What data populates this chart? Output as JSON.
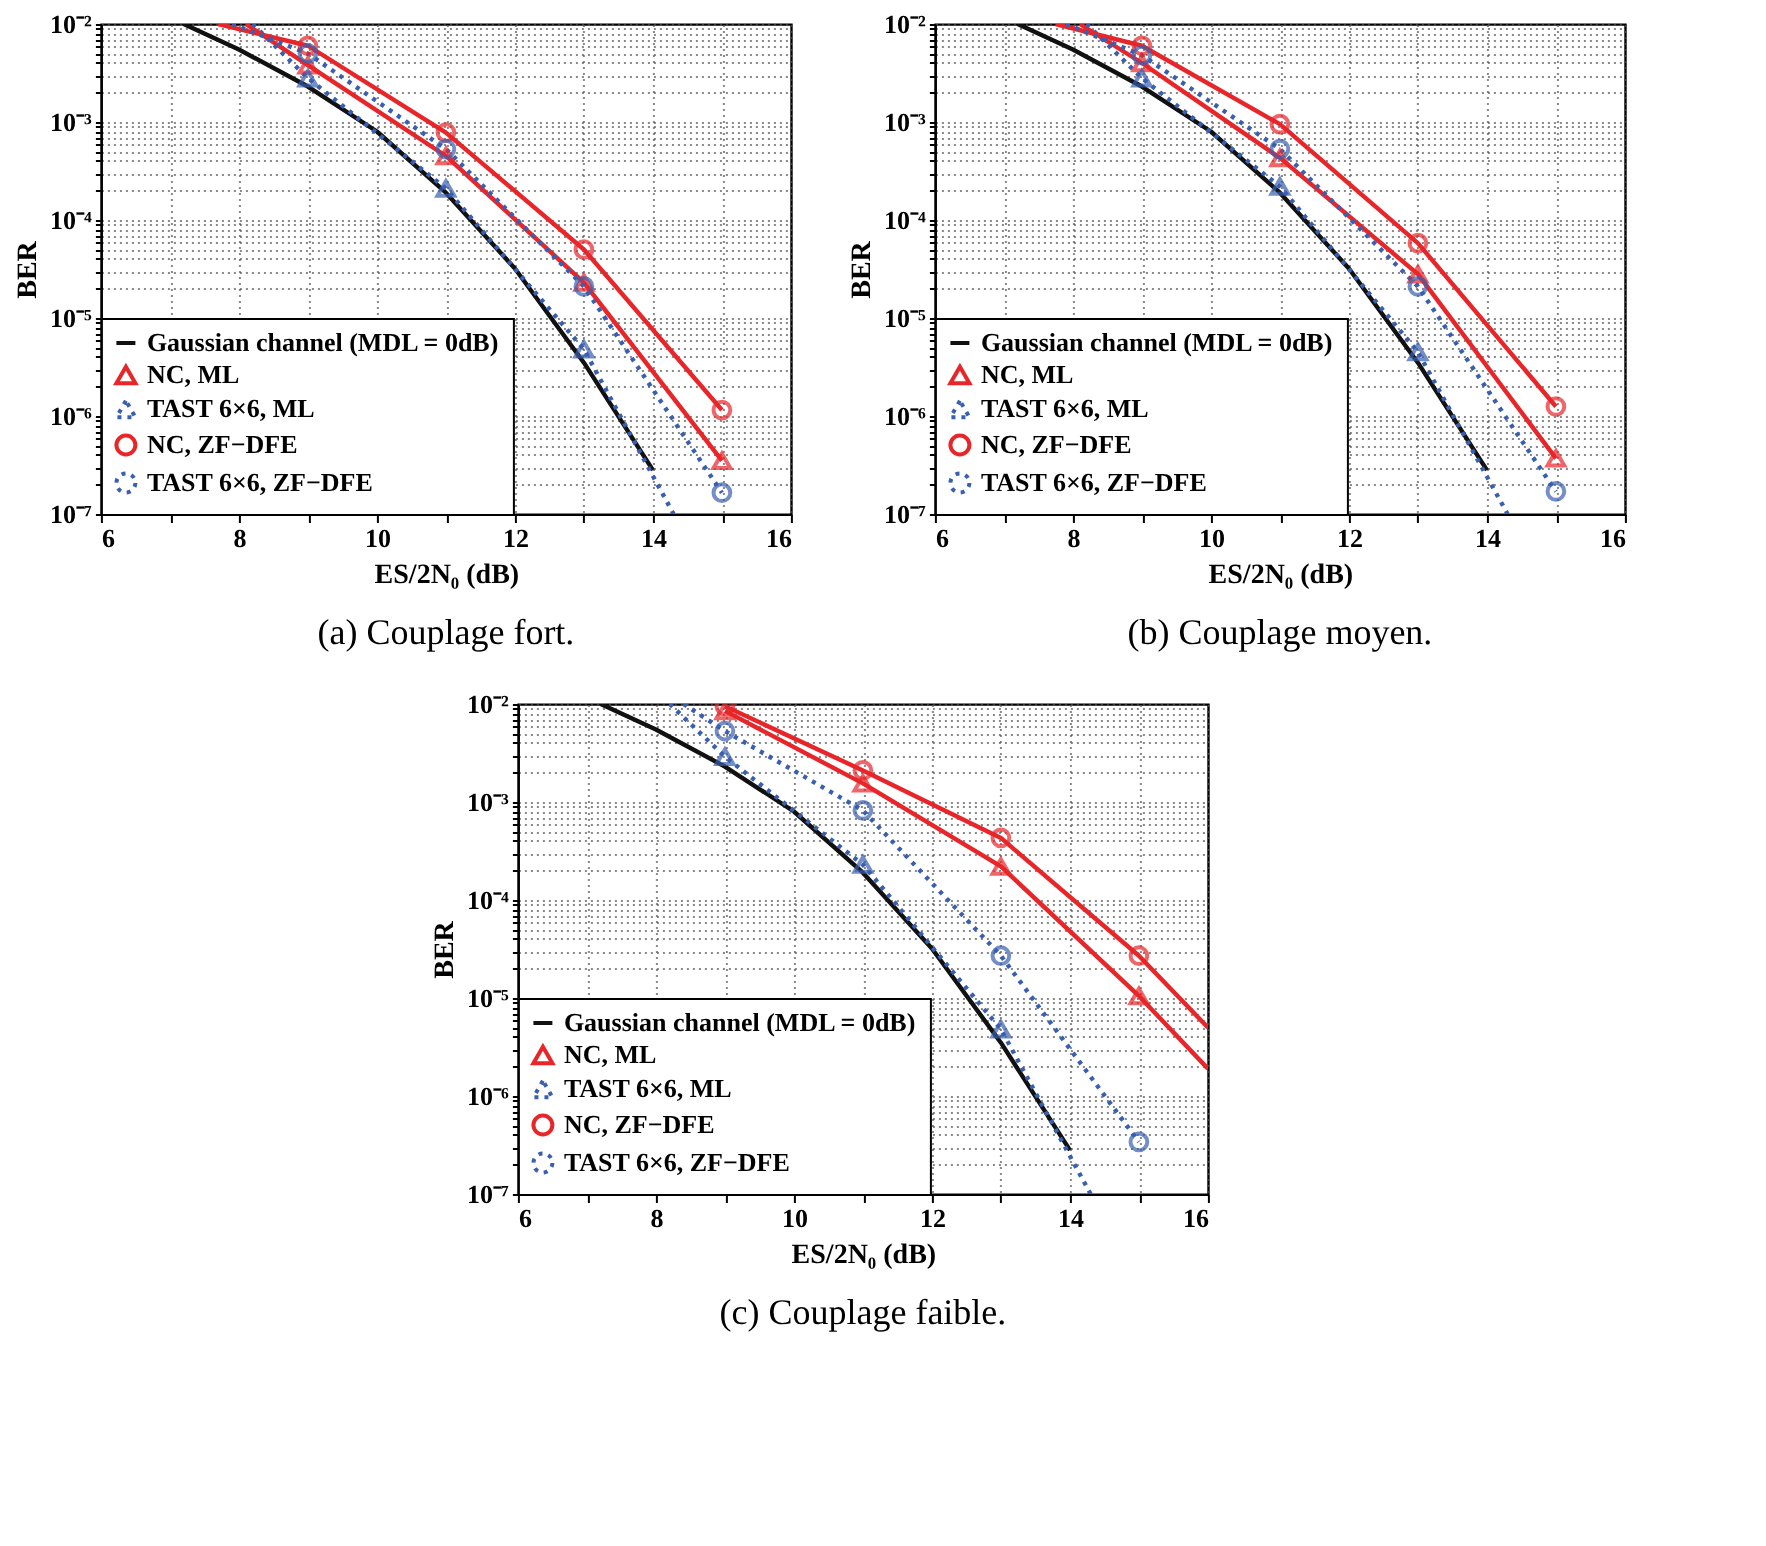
{
  "chart_data": [
    {
      "type": "line",
      "title": "(a) Couplage fort.",
      "xlabel": "ES/2N₀ (dB)",
      "ylabel": "BER",
      "log": "y",
      "grid": true,
      "legend": "bottom left",
      "xlim": [
        6,
        16
      ],
      "ylim": [
        1e-07,
        0.01
      ],
      "xticks": [
        6,
        {
          "value": 7,
          "label": null
        },
        8,
        {
          "value": 9,
          "label": null
        },
        10,
        {
          "value": 11,
          "label": null
        },
        12,
        {
          "value": 13,
          "label": null
        },
        14,
        {
          "value": 15,
          "label": null
        },
        16
      ],
      "yticks": [
        {
          "value": 1e-07,
          "label": "10⁻⁷"
        },
        {
          "value": 2e-07,
          "label": null
        },
        {
          "value": 3e-07,
          "label": null
        },
        {
          "value": 4e-07,
          "label": null
        },
        {
          "value": 5e-07,
          "label": null
        },
        {
          "value": 6e-07,
          "label": null
        },
        {
          "value": 7e-07,
          "label": null
        },
        {
          "value": 8e-07,
          "label": null
        },
        {
          "value": 9e-07,
          "label": null
        },
        {
          "value": 1e-06,
          "label": "10⁻⁶"
        },
        {
          "value": 2e-06,
          "label": null
        },
        {
          "value": 3e-06,
          "label": null
        },
        {
          "value": 4e-06,
          "label": null
        },
        {
          "value": 5e-06,
          "label": null
        },
        {
          "value": 6e-06,
          "label": null
        },
        {
          "value": 7e-06,
          "label": null
        },
        {
          "value": 8e-06,
          "label": null
        },
        {
          "value": 9e-06,
          "label": null
        },
        {
          "value": 1e-05,
          "label": "10⁻⁵"
        },
        {
          "value": 2e-05,
          "label": null
        },
        {
          "value": 3e-05,
          "label": null
        },
        {
          "value": 4e-05,
          "label": null
        },
        {
          "value": 5e-05,
          "label": null
        },
        {
          "value": 6e-05,
          "label": null
        },
        {
          "value": 7e-05,
          "label": null
        },
        {
          "value": 8e-05,
          "label": null
        },
        {
          "value": 9e-05,
          "label": null
        },
        {
          "value": 0.0001,
          "label": "10⁻⁴"
        },
        {
          "value": 0.0002,
          "label": null
        },
        {
          "value": 0.0003,
          "label": null
        },
        {
          "value": 0.0004,
          "label": null
        },
        {
          "value": 0.0005,
          "label": null
        },
        {
          "value": 0.0006,
          "label": null
        },
        {
          "value": 0.0007,
          "label": null
        },
        {
          "value": 0.0008,
          "label": null
        },
        {
          "value": 0.0009,
          "label": null
        },
        {
          "value": 0.001,
          "label": "10⁻³"
        },
        {
          "value": 0.002,
          "label": null
        },
        {
          "value": 0.003,
          "label": null
        },
        {
          "value": 0.004,
          "label": null
        },
        {
          "value": 0.005,
          "label": null
        },
        {
          "value": 0.006,
          "label": null
        },
        {
          "value": 0.007,
          "label": null
        },
        {
          "value": 0.008,
          "label": null
        },
        {
          "value": 0.009,
          "label": null
        },
        {
          "value": 0.01,
          "label": "10⁻²"
        }
      ],
      "series": [
        {
          "name": "Gaussian channel (MDL = 0dB)",
          "color": "#111111",
          "line_style": "solid",
          "marker": "none",
          "x": [
            7.2,
            8,
            9,
            10,
            11,
            12,
            13,
            14
          ],
          "values": [
            0.01,
            0.0055,
            0.0023,
            0.0008,
            0.00019,
            3.2e-05,
            3.5e-06,
            2.8e-07
          ]
        },
        {
          "name": "NC, ML",
          "color": "#e8262a",
          "line_style": "solid",
          "marker": "triangle",
          "x": [
            8.1,
            9,
            11,
            13,
            15
          ],
          "values": [
            0.01,
            0.0038,
            0.00045,
            2.3e-05,
            3.5e-07
          ]
        },
        {
          "name": "TAST 6×6, ML",
          "color": "#3a5fb0",
          "line_style": "dotted",
          "marker": "triangle",
          "x": [
            8.2,
            9,
            11,
            13,
            14.3
          ],
          "values": [
            0.01,
            0.0028,
            0.00021,
            4.8e-06,
            1e-07
          ]
        },
        {
          "name": "NC, ZF−DFE",
          "color": "#e8262a",
          "line_style": "solid",
          "marker": "circle",
          "x": [
            7.7,
            9,
            11,
            13,
            15
          ],
          "values": [
            0.01,
            0.006,
            0.00078,
            5e-05,
            1.15e-06
          ]
        },
        {
          "name": "TAST 6×6, ZF−DFE",
          "color": "#3a5fb0",
          "line_style": "dotted",
          "marker": "circle",
          "x": [
            7.9,
            9,
            11,
            13,
            15
          ],
          "values": [
            0.01,
            0.005,
            0.00053,
            2.1e-05,
            1.65e-07
          ]
        }
      ]
    },
    {
      "type": "line",
      "title": "(b) Couplage moyen.",
      "xlabel": "ES/2N₀ (dB)",
      "ylabel": "BER",
      "log": "y",
      "grid": true,
      "legend": "bottom left",
      "xlim": [
        6,
        16
      ],
      "ylim": [
        1e-07,
        0.01
      ],
      "xticks": [
        6,
        {
          "value": 7,
          "label": null
        },
        8,
        {
          "value": 9,
          "label": null
        },
        10,
        {
          "value": 11,
          "label": null
        },
        12,
        {
          "value": 13,
          "label": null
        },
        14,
        {
          "value": 15,
          "label": null
        },
        16
      ],
      "yticks": [
        {
          "value": 1e-07,
          "label": "10⁻⁷"
        },
        {
          "value": 2e-07,
          "label": null
        },
        {
          "value": 3e-07,
          "label": null
        },
        {
          "value": 4e-07,
          "label": null
        },
        {
          "value": 5e-07,
          "label": null
        },
        {
          "value": 6e-07,
          "label": null
        },
        {
          "value": 7e-07,
          "label": null
        },
        {
          "value": 8e-07,
          "label": null
        },
        {
          "value": 9e-07,
          "label": null
        },
        {
          "value": 1e-06,
          "label": "10⁻⁶"
        },
        {
          "value": 2e-06,
          "label": null
        },
        {
          "value": 3e-06,
          "label": null
        },
        {
          "value": 4e-06,
          "label": null
        },
        {
          "value": 5e-06,
          "label": null
        },
        {
          "value": 6e-06,
          "label": null
        },
        {
          "value": 7e-06,
          "label": null
        },
        {
          "value": 8e-06,
          "label": null
        },
        {
          "value": 9e-06,
          "label": null
        },
        {
          "value": 1e-05,
          "label": "10⁻⁵"
        },
        {
          "value": 2e-05,
          "label": null
        },
        {
          "value": 3e-05,
          "label": null
        },
        {
          "value": 4e-05,
          "label": null
        },
        {
          "value": 5e-05,
          "label": null
        },
        {
          "value": 6e-05,
          "label": null
        },
        {
          "value": 7e-05,
          "label": null
        },
        {
          "value": 8e-05,
          "label": null
        },
        {
          "value": 9e-05,
          "label": null
        },
        {
          "value": 0.0001,
          "label": "10⁻⁴"
        },
        {
          "value": 0.0002,
          "label": null
        },
        {
          "value": 0.0003,
          "label": null
        },
        {
          "value": 0.0004,
          "label": null
        },
        {
          "value": 0.0005,
          "label": null
        },
        {
          "value": 0.0006,
          "label": null
        },
        {
          "value": 0.0007,
          "label": null
        },
        {
          "value": 0.0008,
          "label": null
        },
        {
          "value": 0.0009,
          "label": null
        },
        {
          "value": 0.001,
          "label": "10⁻³"
        },
        {
          "value": 0.002,
          "label": null
        },
        {
          "value": 0.003,
          "label": null
        },
        {
          "value": 0.004,
          "label": null
        },
        {
          "value": 0.005,
          "label": null
        },
        {
          "value": 0.006,
          "label": null
        },
        {
          "value": 0.007,
          "label": null
        },
        {
          "value": 0.008,
          "label": null
        },
        {
          "value": 0.009,
          "label": null
        },
        {
          "value": 0.01,
          "label": "10⁻²"
        }
      ],
      "series": [
        {
          "name": "Gaussian channel (MDL = 0dB)",
          "color": "#111111",
          "line_style": "solid",
          "marker": "none",
          "x": [
            7.2,
            8,
            9,
            10,
            11,
            12,
            13,
            14
          ],
          "values": [
            0.01,
            0.0055,
            0.0023,
            0.0008,
            0.00019,
            3.2e-05,
            3.5e-06,
            2.8e-07
          ]
        },
        {
          "name": "NC, ML",
          "color": "#e8262a",
          "line_style": "solid",
          "marker": "triangle",
          "x": [
            8.1,
            9,
            11,
            13,
            15
          ],
          "values": [
            0.01,
            0.004,
            0.00043,
            2.8e-05,
            3.7e-07
          ]
        },
        {
          "name": "TAST 6×6, ML",
          "color": "#3a5fb0",
          "line_style": "dotted",
          "marker": "triangle",
          "x": [
            8.2,
            9,
            11,
            13,
            14.3
          ],
          "values": [
            0.01,
            0.0028,
            0.00022,
            4.5e-06,
            1e-07
          ]
        },
        {
          "name": "NC, ZF−DFE",
          "color": "#e8262a",
          "line_style": "solid",
          "marker": "circle",
          "x": [
            7.75,
            9,
            11,
            13,
            15
          ],
          "values": [
            0.01,
            0.006,
            0.00095,
            5.8e-05,
            1.25e-06
          ]
        },
        {
          "name": "TAST 6×6, ZF−DFE",
          "color": "#3a5fb0",
          "line_style": "dotted",
          "marker": "circle",
          "x": [
            7.9,
            9,
            11,
            13,
            15
          ],
          "values": [
            0.01,
            0.0048,
            0.00053,
            2.1e-05,
            1.7e-07
          ]
        }
      ]
    },
    {
      "type": "line",
      "title": "(c) Couplage faible.",
      "xlabel": "ES/2N₀ (dB)",
      "ylabel": "BER",
      "log": "y",
      "grid": true,
      "legend": "bottom left",
      "xlim": [
        6,
        16
      ],
      "ylim": [
        1e-07,
        0.01
      ],
      "xticks": [
        6,
        {
          "value": 7,
          "label": null
        },
        8,
        {
          "value": 9,
          "label": null
        },
        10,
        {
          "value": 11,
          "label": null
        },
        12,
        {
          "value": 13,
          "label": null
        },
        14,
        {
          "value": 15,
          "label": null
        },
        16
      ],
      "yticks": [
        {
          "value": 1e-07,
          "label": "10⁻⁷"
        },
        {
          "value": 2e-07,
          "label": null
        },
        {
          "value": 3e-07,
          "label": null
        },
        {
          "value": 4e-07,
          "label": null
        },
        {
          "value": 5e-07,
          "label": null
        },
        {
          "value": 6e-07,
          "label": null
        },
        {
          "value": 7e-07,
          "label": null
        },
        {
          "value": 8e-07,
          "label": null
        },
        {
          "value": 9e-07,
          "label": null
        },
        {
          "value": 1e-06,
          "label": "10⁻⁶"
        },
        {
          "value": 2e-06,
          "label": null
        },
        {
          "value": 3e-06,
          "label": null
        },
        {
          "value": 4e-06,
          "label": null
        },
        {
          "value": 5e-06,
          "label": null
        },
        {
          "value": 6e-06,
          "label": null
        },
        {
          "value": 7e-06,
          "label": null
        },
        {
          "value": 8e-06,
          "label": null
        },
        {
          "value": 9e-06,
          "label": null
        },
        {
          "value": 1e-05,
          "label": "10⁻⁵"
        },
        {
          "value": 2e-05,
          "label": null
        },
        {
          "value": 3e-05,
          "label": null
        },
        {
          "value": 4e-05,
          "label": null
        },
        {
          "value": 5e-05,
          "label": null
        },
        {
          "value": 6e-05,
          "label": null
        },
        {
          "value": 7e-05,
          "label": null
        },
        {
          "value": 8e-05,
          "label": null
        },
        {
          "value": 9e-05,
          "label": null
        },
        {
          "value": 0.0001,
          "label": "10⁻⁴"
        },
        {
          "value": 0.0002,
          "label": null
        },
        {
          "value": 0.0003,
          "label": null
        },
        {
          "value": 0.0004,
          "label": null
        },
        {
          "value": 0.0005,
          "label": null
        },
        {
          "value": 0.0006,
          "label": null
        },
        {
          "value": 0.0007,
          "label": null
        },
        {
          "value": 0.0008,
          "label": null
        },
        {
          "value": 0.0009,
          "label": null
        },
        {
          "value": 0.001,
          "label": "10⁻³"
        },
        {
          "value": 0.002,
          "label": null
        },
        {
          "value": 0.003,
          "label": null
        },
        {
          "value": 0.004,
          "label": null
        },
        {
          "value": 0.005,
          "label": null
        },
        {
          "value": 0.006,
          "label": null
        },
        {
          "value": 0.007,
          "label": null
        },
        {
          "value": 0.008,
          "label": null
        },
        {
          "value": 0.009,
          "label": null
        },
        {
          "value": 0.01,
          "label": "10⁻²"
        }
      ],
      "series": [
        {
          "name": "Gaussian channel (MDL = 0dB)",
          "color": "#111111",
          "line_style": "solid",
          "marker": "none",
          "x": [
            7.2,
            8,
            9,
            10,
            11,
            12,
            13,
            14
          ],
          "values": [
            0.01,
            0.0055,
            0.0023,
            0.0008,
            0.00019,
            3.2e-05,
            3.5e-06,
            2.8e-07
          ]
        },
        {
          "name": "NC, ML",
          "color": "#e8262a",
          "line_style": "solid",
          "marker": "triangle",
          "x": [
            9,
            11,
            13,
            15,
            16
          ],
          "values": [
            0.0085,
            0.00155,
            0.00022,
            1.05e-05,
            1.9e-06
          ]
        },
        {
          "name": "TAST 6×6, ML",
          "color": "#3a5fb0",
          "line_style": "dotted",
          "marker": "triangle",
          "x": [
            8.2,
            9,
            11,
            13,
            14.3
          ],
          "values": [
            0.01,
            0.0029,
            0.00023,
            4.8e-06,
            1e-07
          ]
        },
        {
          "name": "NC, ZF−DFE",
          "color": "#e8262a",
          "line_style": "solid",
          "marker": "circle",
          "x": [
            9,
            11,
            13,
            15,
            16
          ],
          "values": [
            0.0095,
            0.0021,
            0.00043,
            2.7e-05,
            5e-06
          ]
        },
        {
          "name": "TAST 6×6, ZF−DFE",
          "color": "#3a5fb0",
          "line_style": "dotted",
          "marker": "circle",
          "x": [
            8.4,
            9,
            11,
            13,
            15
          ],
          "values": [
            0.01,
            0.0053,
            0.00082,
            2.7e-05,
            3.4e-07
          ]
        }
      ]
    }
  ]
}
